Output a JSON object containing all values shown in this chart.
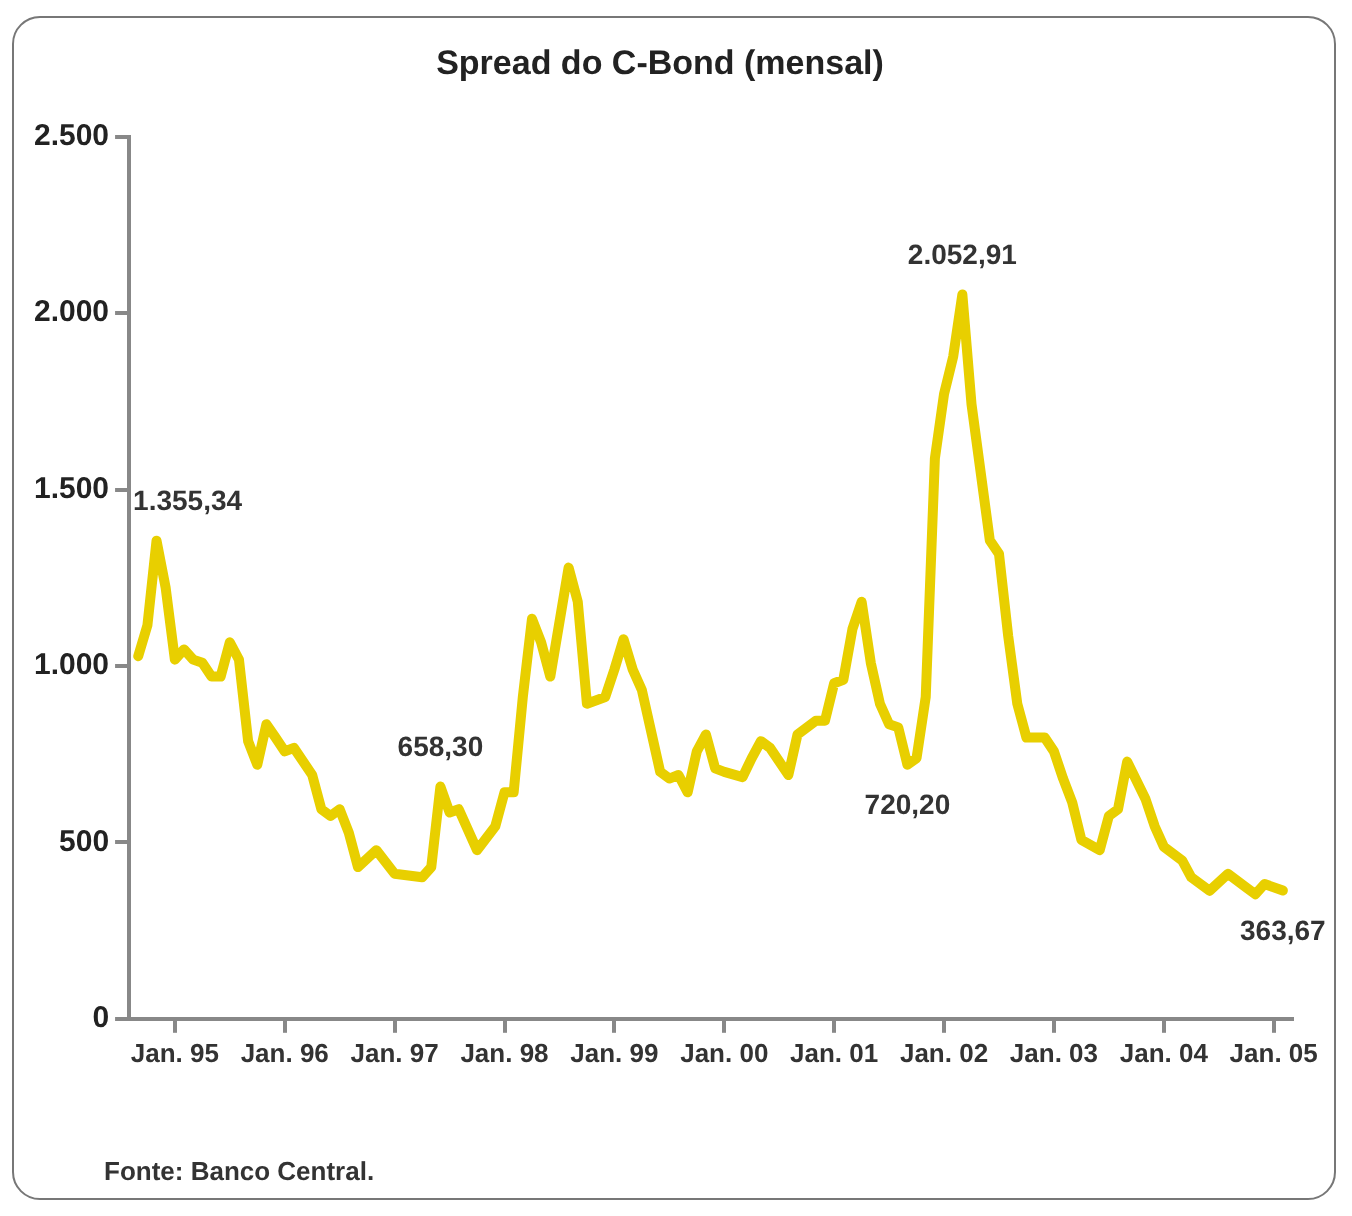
{
  "chart_data": {
    "type": "line",
    "title": "Spread do C-Bond (mensal)",
    "x": [
      "1994-09",
      "1994-10",
      "1994-11",
      "1994-12",
      "1995-01",
      "1995-02",
      "1995-03",
      "1995-04",
      "1995-05",
      "1995-06",
      "1995-07",
      "1995-08",
      "1995-09",
      "1995-10",
      "1995-11",
      "1995-12",
      "1996-01",
      "1996-02",
      "1996-04",
      "1996-05",
      "1996-06",
      "1996-07",
      "1996-08",
      "1996-09",
      "1996-11",
      "1997-01",
      "1997-04",
      "1997-05",
      "1997-06",
      "1997-07",
      "1997-08",
      "1997-10",
      "1997-12",
      "1998-01",
      "1998-02",
      "1998-03",
      "1998-04",
      "1998-05",
      "1998-06",
      "1998-08",
      "1998-09",
      "1998-10",
      "1998-12",
      "1999-01",
      "1999-02",
      "1999-03",
      "1999-04",
      "1999-06",
      "1999-07",
      "1999-08",
      "1999-09",
      "1999-10",
      "1999-11",
      "1999-12",
      "2000-01",
      "2000-03",
      "2000-04",
      "2000-05",
      "2000-06",
      "2000-08",
      "2000-09",
      "2000-11",
      "2000-12",
      "2001-01",
      "2001-02",
      "2001-03",
      "2001-04",
      "2001-05",
      "2001-06",
      "2001-07",
      "2001-08",
      "2001-09",
      "2001-10",
      "2001-11",
      "2001-12",
      "2002-01",
      "2002-02",
      "2002-03",
      "2002-04",
      "2002-06",
      "2002-07",
      "2002-08",
      "2002-09",
      "2002-10",
      "2002-12",
      "2003-01",
      "2003-02",
      "2003-03",
      "2003-04",
      "2003-06",
      "2003-07",
      "2003-08",
      "2003-09",
      "2003-11",
      "2003-12",
      "2004-01",
      "2004-03",
      "2004-04",
      "2004-06",
      "2004-08",
      "2004-10",
      "2004-11",
      "2004-12",
      "2005-02"
    ],
    "series": [
      {
        "color": "#e8cf00",
        "values": [
          1028,
          1115,
          1355.34,
          1221,
          1018,
          1047,
          1018,
          1009,
          970,
          970,
          1067,
          1018,
          787,
          720,
          835,
          797,
          758,
          768,
          691,
          594,
          575,
          594,
          527,
          430,
          478,
          411,
          401,
          430,
          658.3,
          585,
          594,
          478,
          546,
          642,
          642,
          912,
          1134,
          1067,
          970,
          1279,
          1182,
          893,
          912,
          990,
          1076,
          990,
          932,
          700,
          681,
          691,
          642,
          758,
          806,
          710,
          700,
          685,
          739,
          787,
          768,
          691,
          806,
          845,
          845,
          951,
          961,
          1105,
          1182,
          1009,
          893,
          835,
          826,
          720.2,
          739,
          912,
          1588,
          1771,
          1877,
          2052.91,
          1742,
          1356,
          1318,
          1086,
          893,
          797,
          797,
          758,
          681,
          613,
          507,
          478,
          575,
          594,
          729,
          623,
          546,
          488,
          449,
          401,
          363,
          411,
          372,
          353,
          382,
          363.67
        ],
        "value_labels": [
          null,
          null,
          "1.355,34",
          null,
          null,
          null,
          null,
          null,
          null,
          null,
          null,
          null,
          null,
          null,
          null,
          null,
          null,
          null,
          null,
          null,
          null,
          null,
          null,
          null,
          null,
          null,
          null,
          null,
          "658,30",
          null,
          null,
          null,
          null,
          null,
          null,
          null,
          null,
          null,
          null,
          null,
          null,
          null,
          null,
          null,
          null,
          null,
          null,
          null,
          null,
          null,
          null,
          null,
          null,
          null,
          null,
          null,
          null,
          null,
          null,
          null,
          null,
          null,
          null,
          null,
          null,
          null,
          null,
          null,
          null,
          null,
          null,
          "720,20",
          null,
          null,
          null,
          null,
          null,
          "2.052,91",
          null,
          null,
          null,
          null,
          null,
          null,
          null,
          null,
          null,
          null,
          null,
          null,
          null,
          null,
          null,
          null,
          null,
          null,
          null,
          null,
          null,
          null,
          null,
          null,
          null,
          "363,67"
        ]
      }
    ],
    "xlim": [
      "1994-08",
      "2005-03"
    ],
    "xticks": [
      {
        "value": "1995-01",
        "label": "Jan. 95"
      },
      {
        "value": "1996-01",
        "label": "Jan. 96"
      },
      {
        "value": "1997-01",
        "label": "Jan. 97"
      },
      {
        "value": "1998-01",
        "label": "Jan. 98"
      },
      {
        "value": "1999-01",
        "label": "Jan. 99"
      },
      {
        "value": "2000-01",
        "label": "Jan. 00"
      },
      {
        "value": "2001-01",
        "label": "Jan. 01"
      },
      {
        "value": "2002-01",
        "label": "Jan. 02"
      },
      {
        "value": "2003-01",
        "label": "Jan. 03"
      },
      {
        "value": "2004-01",
        "label": "Jan. 04"
      },
      {
        "value": "2005-01",
        "label": "Jan. 05"
      }
    ],
    "ylim": [
      0,
      2500
    ],
    "yticks": [
      0,
      500,
      {
        "value": 1000,
        "label": "1.000"
      },
      {
        "value": 1500,
        "label": "1.500"
      },
      {
        "value": 2000,
        "label": "2.000"
      },
      {
        "value": 2500,
        "label": "2.500"
      }
    ],
    "grid": false,
    "legend": false,
    "marker": "none",
    "line_style": "solid",
    "annotations": [
      "Fonte: Banco Central."
    ]
  }
}
